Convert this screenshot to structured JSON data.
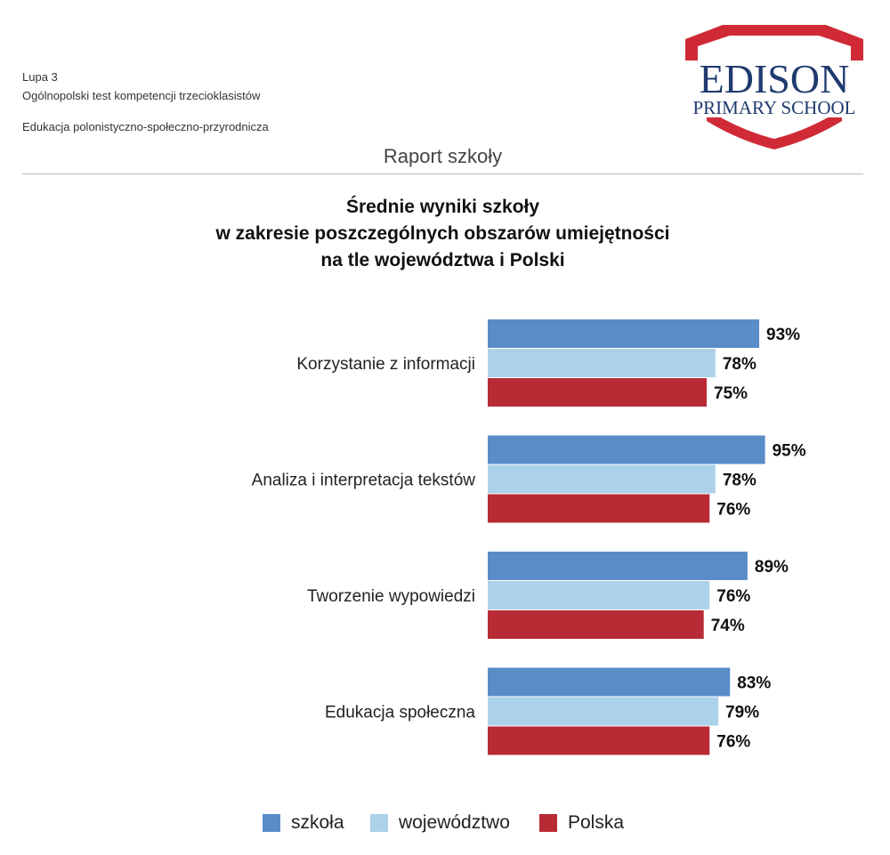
{
  "header": {
    "line1": "Lupa 3",
    "line2": "Ogólnopolski test kompetencji trzecioklasistów",
    "line3": "Edukacja polonistyczno-społeczno-przyrodnicza",
    "report_title": "Raport szkoły"
  },
  "logo": {
    "line1": "EDISON",
    "line2": "PRIMARY SCHOOL",
    "colors": {
      "shield": "#cf2a36",
      "text": "#1f3a6e"
    }
  },
  "colors": {
    "szkola": "#5a8dc8",
    "wojewodztwo": "#acd2ea",
    "polska": "#b82b35"
  },
  "chart_data": {
    "type": "bar",
    "orientation": "horizontal",
    "title": "Średnie wyniki szkoły w zakresie poszczególnych obszarów umiejętności na tle województwa i Polski",
    "title_lines": [
      "Średnie wyniki szkoły",
      "w zakresie poszczególnych obszarów umiejętności",
      "na tle województwa i Polski"
    ],
    "categories": [
      "Korzystanie z informacji",
      "Analiza i interpretacja tekstów",
      "Tworzenie wypowiedzi",
      "Edukacja społeczna"
    ],
    "series": [
      {
        "name": "szkoła",
        "values": [
          93,
          95,
          89,
          83
        ],
        "labels": [
          "93%",
          "95%",
          "89%",
          "83%"
        ]
      },
      {
        "name": "województwo",
        "values": [
          78,
          78,
          76,
          79
        ],
        "labels": [
          "78%",
          "78%",
          "76%",
          "79%"
        ]
      },
      {
        "name": "Polska",
        "values": [
          75,
          76,
          74,
          76
        ],
        "labels": [
          "75%",
          "76%",
          "74%",
          "76%"
        ]
      }
    ],
    "unit": "%",
    "xlim": [
      0,
      100
    ],
    "grid": false,
    "legend_position": "bottom"
  }
}
